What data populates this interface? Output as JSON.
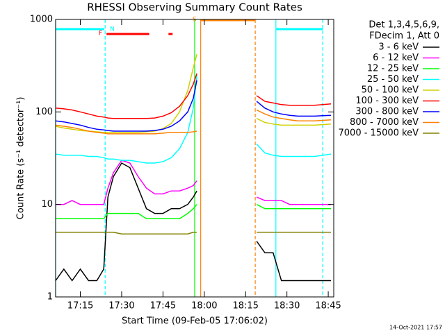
{
  "chart_data": {
    "type": "line",
    "title": "RHESSI Observing Summary Count Rates",
    "xlabel": "Start Time (09-Feb-05 17:06:02)",
    "ylabel": "Count Rate (s⁻¹ detector⁻¹)",
    "legend_header": [
      "Det 1,3,4,5,6,9,",
      "FDecim 1, Att 0"
    ],
    "footer": "14-Oct-2021 17:57",
    "yscale": "log",
    "legend": "upper right outside",
    "xlim": [
      6.03,
      107
    ],
    "ylim": [
      1,
      1000
    ],
    "xticks": [
      {
        "value": 15,
        "label": "17:15"
      },
      {
        "value": 30,
        "label": "17:30"
      },
      {
        "value": 45,
        "label": "17:45"
      },
      {
        "value": 60,
        "label": "18:00"
      },
      {
        "value": 75,
        "label": "18:15"
      },
      {
        "value": 90,
        "label": "18:30"
      },
      {
        "value": 105,
        "label": "18:45"
      }
    ],
    "yticks": [
      1,
      10,
      100,
      1000
    ],
    "x": [
      6.03,
      9,
      12,
      15,
      18,
      21,
      23.5,
      25,
      27,
      30,
      33,
      36,
      39,
      42,
      45,
      48,
      51,
      54,
      56,
      57.3,
      68,
      79,
      82,
      85,
      88,
      91,
      94,
      97,
      100,
      103,
      106
    ],
    "series": [
      {
        "name": "3 - 6 keV",
        "color": "#000000",
        "values": [
          1.5,
          2,
          1.5,
          2,
          1.5,
          1.5,
          2,
          12,
          20,
          28,
          25,
          15,
          9,
          8,
          8,
          9,
          9,
          10,
          12,
          14,
          null,
          4,
          3,
          3,
          1.5,
          1.5,
          1.5,
          1.5,
          1.5,
          1.5,
          1.5
        ]
      },
      {
        "name": "6 - 12 keV",
        "color": "#ff00ff",
        "values": [
          10,
          10,
          11,
          10,
          10,
          10,
          10,
          15,
          22,
          30,
          28,
          20,
          15,
          13,
          13,
          14,
          14,
          15,
          16,
          18,
          null,
          12,
          11,
          11,
          11,
          10,
          10,
          10,
          10,
          10,
          10
        ]
      },
      {
        "name": "12 - 25 keV",
        "color": "#00ff00",
        "values": [
          7,
          7,
          7,
          7,
          7,
          7,
          7,
          8,
          8,
          8,
          8,
          8,
          7,
          7,
          7,
          7,
          7,
          8,
          9,
          10,
          null,
          10,
          9,
          9,
          9,
          9,
          9,
          9,
          9,
          9,
          9
        ]
      },
      {
        "name": "25 - 50 keV",
        "color": "#00ffff",
        "values": [
          35,
          34,
          34,
          34,
          33,
          33,
          32,
          31,
          31,
          30,
          30,
          29,
          28,
          28,
          29,
          32,
          40,
          60,
          110,
          250,
          null,
          45,
          36,
          34,
          33,
          33,
          33,
          33,
          33,
          34,
          35
        ]
      },
      {
        "name": "50 - 100 keV",
        "color": "#d0d000",
        "values": [
          70,
          67,
          65,
          63,
          62,
          61,
          60,
          60,
          60,
          60,
          60,
          60,
          61,
          62,
          66,
          75,
          100,
          170,
          300,
          420,
          null,
          85,
          77,
          74,
          72,
          72,
          72,
          72,
          72,
          73,
          74
        ]
      },
      {
        "name": "100 - 300 keV",
        "color": "#ff0000",
        "values": [
          110,
          108,
          105,
          100,
          95,
          90,
          88,
          86,
          85,
          85,
          85,
          85,
          85,
          86,
          90,
          98,
          115,
          150,
          200,
          260,
          null,
          150,
          130,
          125,
          120,
          118,
          118,
          118,
          118,
          120,
          122
        ]
      },
      {
        "name": "300 - 800 keV",
        "color": "#0000ff",
        "values": [
          80,
          78,
          75,
          72,
          68,
          65,
          64,
          63,
          62,
          62,
          62,
          62,
          62,
          63,
          65,
          70,
          80,
          100,
          140,
          220,
          null,
          130,
          110,
          100,
          95,
          92,
          90,
          90,
          90,
          91,
          92
        ]
      },
      {
        "name": "800 - 7000 keV",
        "color": "#ff8000",
        "values": [
          72,
          70,
          68,
          65,
          62,
          60,
          59,
          58,
          58,
          58,
          58,
          58,
          58,
          58,
          59,
          60,
          60,
          60,
          61,
          62,
          null,
          105,
          95,
          88,
          85,
          82,
          80,
          80,
          80,
          81,
          82
        ]
      },
      {
        "name": "7000 - 15000 keV",
        "color": "#808000",
        "values": [
          5,
          5,
          5,
          5,
          5,
          5,
          5,
          5,
          5,
          4.8,
          4.8,
          4.8,
          4.8,
          4.8,
          4.8,
          4.8,
          4.8,
          4.8,
          5,
          5,
          null,
          5,
          5,
          5,
          5,
          5,
          5,
          5,
          5,
          5,
          5
        ]
      }
    ],
    "flags": [
      {
        "label": "N",
        "color": "#00ffff",
        "intervals": [
          [
            6.03,
            23.7
          ],
          [
            86,
            103
          ]
        ]
      },
      {
        "label": "F",
        "color": "#ff0000",
        "intervals": [
          [
            24.5,
            40
          ],
          [
            47,
            48.5
          ]
        ]
      },
      {
        "label": "S",
        "color": "#ff8000",
        "intervals": [
          [
            58.7,
            78.5
          ]
        ]
      }
    ],
    "markers": [
      {
        "x": 6.03,
        "color": "#00ffff",
        "dashed": false
      },
      {
        "x": 24,
        "color": "#00ffff",
        "dashed": true
      },
      {
        "x": 86,
        "color": "#00ffff",
        "dashed": false
      },
      {
        "x": 103,
        "color": "#00ffff",
        "dashed": true
      },
      {
        "x": 56.5,
        "color": "#00ff00",
        "dashed": false
      },
      {
        "x": 58.7,
        "color": "#ff8000",
        "dashed": false
      },
      {
        "x": 78.5,
        "color": "#ff8000",
        "dashed": true
      }
    ]
  }
}
